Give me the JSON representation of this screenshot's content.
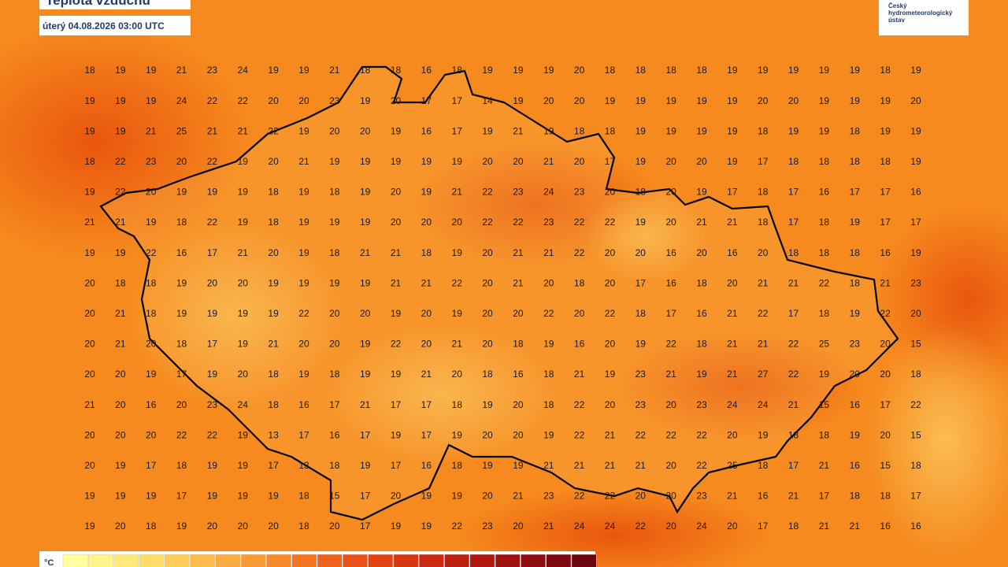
{
  "header": {
    "title": "Teplota vzduchu",
    "date": "úterý 04.08.2026 03:00 UTC"
  },
  "logo": {
    "text": "Český hydrometeorologický ústav"
  },
  "grid": {
    "rows": [
      [
        18,
        19,
        19,
        21,
        23,
        24,
        19,
        19,
        21,
        18,
        18,
        16,
        18,
        19,
        19,
        19,
        20,
        18,
        18,
        18,
        18,
        19,
        19,
        19,
        19,
        19,
        18,
        19
      ],
      [
        19,
        19,
        19,
        24,
        22,
        22,
        20,
        20,
        23,
        19,
        20,
        17,
        17,
        14,
        19,
        20,
        20,
        19,
        19,
        19,
        19,
        19,
        20,
        20,
        19,
        19,
        19,
        20
      ],
      [
        19,
        19,
        21,
        25,
        21,
        21,
        22,
        19,
        20,
        20,
        19,
        16,
        17,
        19,
        21,
        19,
        18,
        18,
        19,
        19,
        19,
        19,
        18,
        19,
        19,
        18,
        19,
        19
      ],
      [
        18,
        22,
        23,
        20,
        22,
        19,
        20,
        21,
        19,
        19,
        19,
        19,
        19,
        20,
        20,
        21,
        20,
        17,
        19,
        20,
        20,
        19,
        17,
        18,
        18,
        18,
        18,
        19
      ],
      [
        19,
        22,
        20,
        19,
        19,
        19,
        18,
        19,
        18,
        19,
        20,
        19,
        21,
        22,
        23,
        24,
        23,
        20,
        18,
        20,
        19,
        17,
        18,
        17,
        16,
        17,
        17,
        16
      ],
      [
        21,
        21,
        19,
        18,
        22,
        19,
        18,
        19,
        19,
        19,
        20,
        20,
        20,
        22,
        22,
        23,
        22,
        22,
        19,
        20,
        21,
        21,
        18,
        17,
        18,
        19,
        17,
        17
      ],
      [
        19,
        19,
        22,
        16,
        17,
        21,
        20,
        19,
        18,
        21,
        21,
        18,
        19,
        20,
        21,
        21,
        22,
        20,
        20,
        16,
        20,
        16,
        20,
        18,
        18,
        18,
        16,
        19
      ],
      [
        20,
        18,
        18,
        19,
        20,
        20,
        19,
        19,
        19,
        19,
        21,
        21,
        22,
        20,
        21,
        20,
        18,
        20,
        17,
        16,
        18,
        20,
        21,
        21,
        22,
        18,
        21,
        23
      ],
      [
        20,
        21,
        18,
        19,
        19,
        19,
        19,
        22,
        20,
        20,
        19,
        20,
        19,
        20,
        20,
        22,
        20,
        22,
        18,
        17,
        16,
        21,
        22,
        17,
        18,
        19,
        22,
        20
      ],
      [
        20,
        21,
        20,
        18,
        17,
        19,
        21,
        20,
        20,
        19,
        22,
        20,
        21,
        20,
        18,
        19,
        16,
        20,
        19,
        22,
        18,
        21,
        21,
        22,
        25,
        23,
        20,
        15
      ],
      [
        20,
        20,
        19,
        17,
        19,
        20,
        18,
        19,
        18,
        19,
        19,
        21,
        20,
        18,
        16,
        18,
        21,
        19,
        23,
        21,
        19,
        21,
        27,
        22,
        19,
        20,
        20,
        18
      ],
      [
        21,
        20,
        16,
        20,
        23,
        24,
        18,
        16,
        17,
        21,
        17,
        17,
        18,
        19,
        20,
        18,
        22,
        20,
        23,
        20,
        23,
        24,
        24,
        21,
        15,
        16,
        17,
        22
      ],
      [
        20,
        20,
        20,
        22,
        22,
        19,
        13,
        17,
        16,
        17,
        19,
        17,
        19,
        20,
        20,
        19,
        22,
        21,
        22,
        22,
        22,
        20,
        19,
        18,
        18,
        19,
        20,
        15
      ],
      [
        20,
        19,
        17,
        18,
        19,
        19,
        17,
        13,
        18,
        19,
        17,
        16,
        18,
        19,
        19,
        21,
        21,
        21,
        21,
        20,
        22,
        25,
        18,
        17,
        21,
        16,
        15,
        18
      ],
      [
        19,
        19,
        19,
        17,
        19,
        19,
        19,
        18,
        15,
        17,
        20,
        19,
        19,
        20,
        21,
        23,
        22,
        22,
        20,
        20,
        23,
        21,
        16,
        21,
        17,
        18,
        18,
        17
      ],
      [
        19,
        20,
        18,
        19,
        20,
        20,
        20,
        18,
        20,
        17,
        19,
        19,
        22,
        23,
        20,
        21,
        24,
        24,
        22,
        20,
        24,
        20,
        17,
        18,
        21,
        21,
        16,
        16
      ]
    ]
  },
  "legend": {
    "unit": "°C"
  }
}
